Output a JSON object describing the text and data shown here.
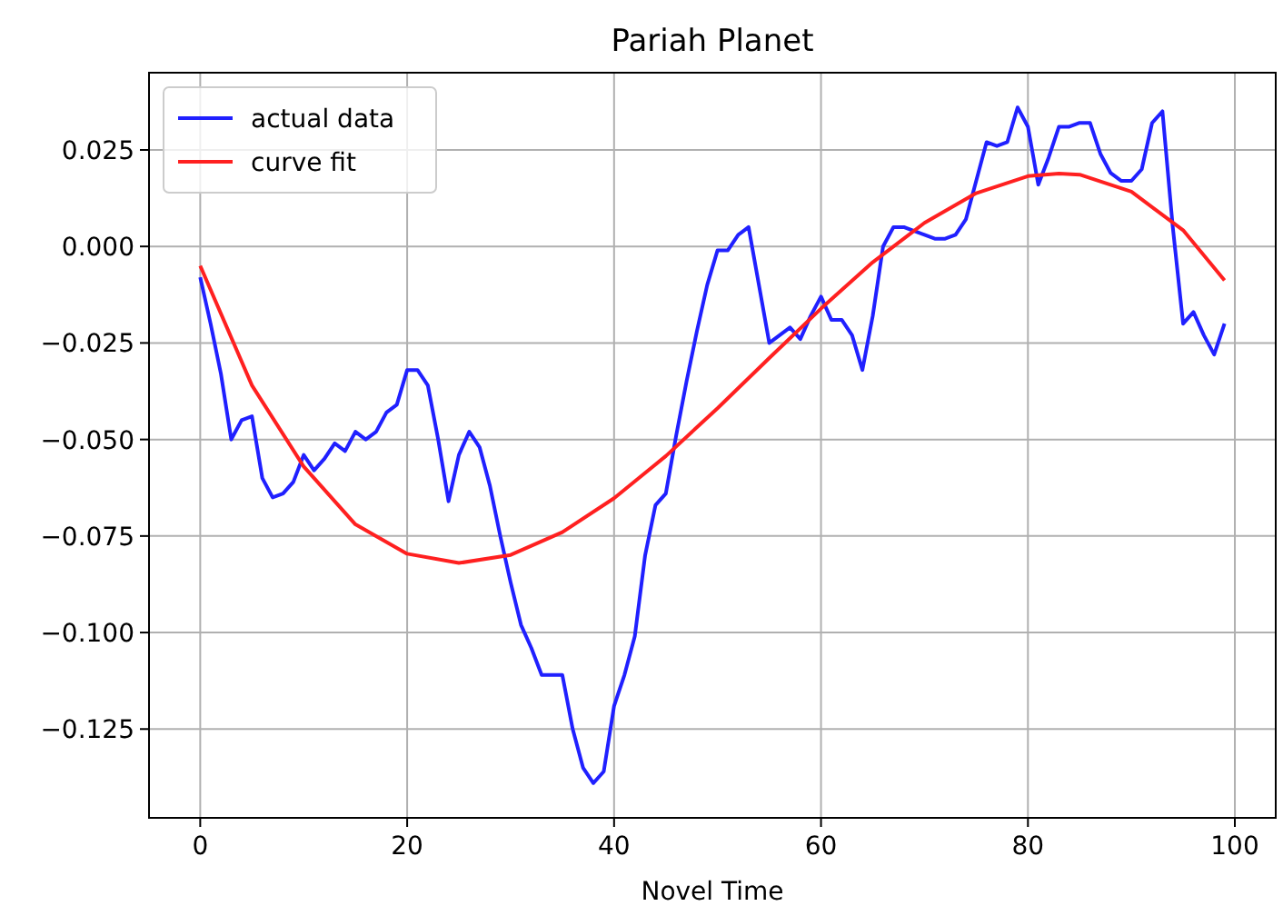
{
  "chart_data": {
    "type": "line",
    "title": "Pariah Planet",
    "xlabel": "Novel Time",
    "xlim": [
      -4.95,
      103.95
    ],
    "xticks": [
      0,
      20,
      40,
      60,
      80,
      100
    ],
    "ylim": [
      -0.148,
      0.045
    ],
    "yticks": [
      {
        "value": 0.025,
        "label": "0.025"
      },
      {
        "value": 0,
        "label": "0.000"
      },
      {
        "value": -0.025,
        "label": "−0.025"
      },
      {
        "value": -0.05,
        "label": "−0.050"
      },
      {
        "value": -0.075,
        "label": "−0.075"
      },
      {
        "value": -0.1,
        "label": "−0.100"
      },
      {
        "value": -0.125,
        "label": "−0.125"
      }
    ],
    "grid": true,
    "legend": "top left",
    "line_style": "solid",
    "series": [
      {
        "name": "actual data",
        "color": "#2020ff",
        "x": [
          0,
          1,
          2,
          3,
          4,
          5,
          6,
          7,
          8,
          9,
          10,
          11,
          12,
          13,
          14,
          15,
          16,
          17,
          18,
          19,
          20,
          21,
          22,
          23,
          24,
          25,
          26,
          27,
          28,
          29,
          30,
          31,
          32,
          33,
          34,
          35,
          36,
          37,
          38,
          39,
          40,
          41,
          42,
          43,
          44,
          45,
          46,
          47,
          48,
          49,
          50,
          51,
          52,
          53,
          54,
          55,
          56,
          57,
          58,
          59,
          60,
          61,
          62,
          63,
          64,
          65,
          66,
          67,
          68,
          69,
          70,
          71,
          72,
          73,
          74,
          75,
          76,
          77,
          78,
          79,
          80,
          81,
          82,
          83,
          84,
          85,
          86,
          87,
          88,
          89,
          90,
          91,
          92,
          93,
          94,
          95,
          96,
          97,
          98,
          99
        ],
        "values": [
          -0.008,
          -0.02,
          -0.033,
          -0.05,
          -0.045,
          -0.044,
          -0.06,
          -0.065,
          -0.064,
          -0.061,
          -0.054,
          -0.058,
          -0.055,
          -0.051,
          -0.053,
          -0.048,
          -0.05,
          -0.048,
          -0.043,
          -0.041,
          -0.032,
          -0.032,
          -0.036,
          -0.05,
          -0.066,
          -0.054,
          -0.048,
          -0.052,
          -0.062,
          -0.075,
          -0.087,
          -0.098,
          -0.104,
          -0.111,
          -0.111,
          -0.111,
          -0.125,
          -0.135,
          -0.139,
          -0.136,
          -0.119,
          -0.111,
          -0.101,
          -0.08,
          -0.067,
          -0.064,
          -0.049,
          -0.035,
          -0.022,
          -0.01,
          -0.001,
          -0.001,
          0.003,
          0.005,
          -0.01,
          -0.025,
          -0.023,
          -0.021,
          -0.024,
          -0.018,
          -0.013,
          -0.019,
          -0.019,
          -0.023,
          -0.032,
          -0.018,
          0,
          0.005,
          0.005,
          0.004,
          0.003,
          0.002,
          0.002,
          0.003,
          0.007,
          0.017,
          0.027,
          0.026,
          0.027,
          0.036,
          0.031,
          0.016,
          0.023,
          0.031,
          0.031,
          0.032,
          0.032,
          0.024,
          0.019,
          0.017,
          0.017,
          0.02,
          0.032,
          0.035,
          0.005,
          -0.02,
          -0.017,
          -0.023,
          -0.028,
          -0.02
        ]
      },
      {
        "name": "curve fit",
        "color": "#ff2020",
        "x": [
          0,
          5,
          10,
          15,
          20,
          25,
          30,
          35,
          40,
          45,
          50,
          55,
          60,
          65,
          70,
          75,
          80,
          83,
          85,
          90,
          95,
          99
        ],
        "values": [
          -0.005,
          -0.036,
          -0.057,
          -0.072,
          -0.0796,
          -0.082,
          -0.0799,
          -0.074,
          -0.0652,
          -0.0543,
          -0.0419,
          -0.0289,
          -0.0161,
          -0.0041,
          0.0061,
          0.0138,
          0.0182,
          0.0189,
          0.0186,
          0.0142,
          0.0042,
          -0.0088
        ]
      }
    ]
  }
}
